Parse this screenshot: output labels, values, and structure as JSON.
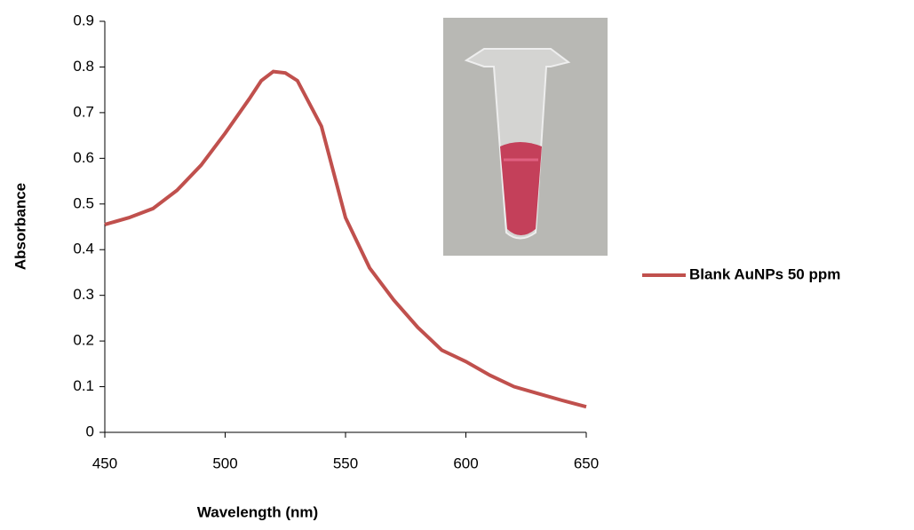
{
  "chart_data": {
    "type": "line",
    "x_label": "Wavelength (nm)",
    "y_label": "Absorbance",
    "x": [
      450,
      460,
      470,
      480,
      490,
      500,
      510,
      515,
      520,
      525,
      530,
      540,
      550,
      560,
      570,
      580,
      590,
      600,
      610,
      620,
      630,
      640,
      650
    ],
    "series": [
      {
        "name": "Blank AuNPs 50 ppm",
        "color": "#c0504d",
        "values": [
          0.455,
          0.47,
          0.49,
          0.53,
          0.585,
          0.655,
          0.73,
          0.77,
          0.79,
          0.787,
          0.77,
          0.67,
          0.47,
          0.36,
          0.29,
          0.23,
          0.18,
          0.155,
          0.125,
          0.1,
          0.085,
          0.07,
          0.056
        ]
      }
    ],
    "xlim": [
      450,
      650
    ],
    "xticks": [
      450,
      500,
      550,
      600,
      650
    ],
    "ylim": [
      0,
      0.9
    ],
    "yticks": [
      0,
      0.1,
      0.2,
      0.3,
      0.4,
      0.5,
      0.6,
      0.7,
      0.8,
      0.9
    ],
    "grid": false,
    "legend": "right"
  }
}
